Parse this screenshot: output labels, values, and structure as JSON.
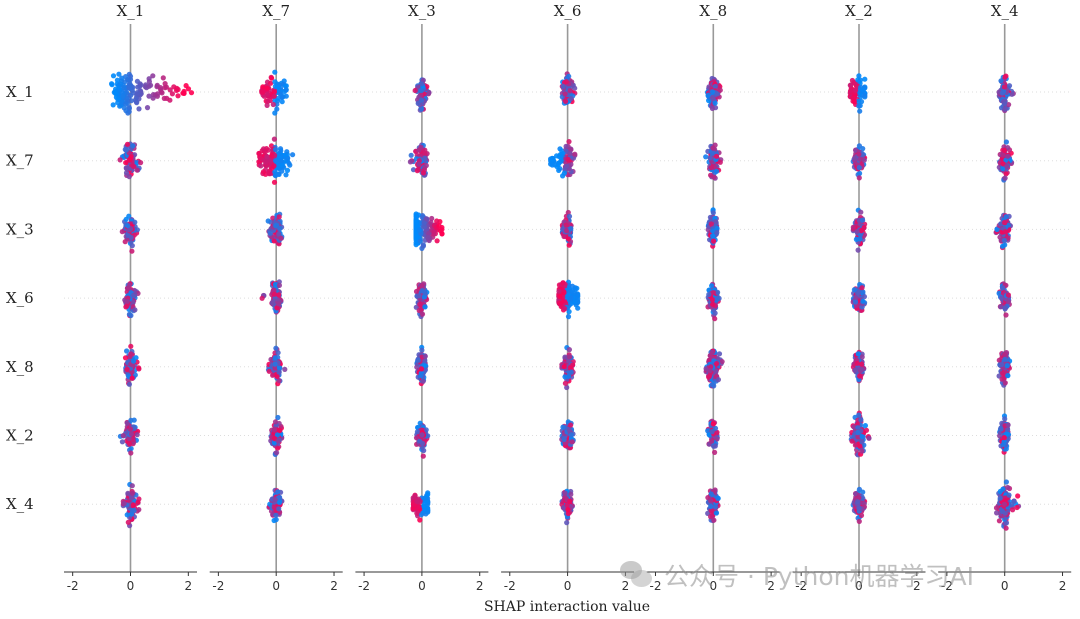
{
  "watermark": {
    "text": "公众号 · Python机器学习AI",
    "logo": "wechat-logo"
  },
  "colors": {
    "low": "#008afb",
    "high": "#ff0052",
    "axis": "#999999",
    "grid": "#dddddd"
  },
  "chart_data": {
    "type": "scatter",
    "subtype": "shap-interaction-beeswarm-matrix",
    "xlabel": "SHAP interaction value",
    "xlim": [
      -2.3,
      2.3
    ],
    "xticks": [
      -2,
      0,
      2
    ],
    "xtick_labels": [
      "-2",
      "0",
      "2"
    ],
    "columns": [
      "X_1",
      "X_7",
      "X_3",
      "X_6",
      "X_8",
      "X_2",
      "X_4"
    ],
    "rows": [
      "X_1",
      "X_7",
      "X_3",
      "X_6",
      "X_8",
      "X_2",
      "X_4"
    ],
    "center_line": 0,
    "grid": "horizontal-dotted",
    "cells": [
      [
        {
          "min": -0.7,
          "max": 2.2,
          "skew": "high-right"
        },
        {
          "min": -0.5,
          "max": 0.35,
          "skew": "high-left"
        },
        {
          "min": -0.25,
          "max": 0.25,
          "skew": "mixed"
        },
        {
          "min": -0.2,
          "max": 0.25,
          "skew": "mixed"
        },
        {
          "min": -0.2,
          "max": 0.25,
          "skew": "mixed"
        },
        {
          "min": -0.3,
          "max": 0.2,
          "skew": "high-left"
        },
        {
          "min": -0.25,
          "max": 0.3,
          "skew": "mixed"
        }
      ],
      [
        {
          "min": -0.5,
          "max": 0.35,
          "skew": "mixed"
        },
        {
          "min": -0.6,
          "max": 0.8,
          "skew": "high-left"
        },
        {
          "min": -0.4,
          "max": 0.2,
          "skew": "mixed"
        },
        {
          "min": -0.6,
          "max": 0.25,
          "skew": "low-left"
        },
        {
          "min": -0.35,
          "max": 0.3,
          "skew": "mixed"
        },
        {
          "min": -0.2,
          "max": 0.2,
          "skew": "mixed"
        },
        {
          "min": -0.2,
          "max": 0.25,
          "skew": "mixed"
        }
      ],
      [
        {
          "min": -0.3,
          "max": 0.25,
          "skew": "mixed"
        },
        {
          "min": -0.35,
          "max": 0.2,
          "skew": "mixed"
        },
        {
          "min": -0.2,
          "max": 0.7,
          "skew": "high-right"
        },
        {
          "min": -0.2,
          "max": 0.2,
          "skew": "mixed"
        },
        {
          "min": -0.2,
          "max": 0.2,
          "skew": "mixed"
        },
        {
          "min": -0.2,
          "max": 0.2,
          "skew": "mixed"
        },
        {
          "min": -0.3,
          "max": 0.25,
          "skew": "mixed"
        }
      ],
      [
        {
          "min": -0.2,
          "max": 0.3,
          "skew": "mixed"
        },
        {
          "min": -0.5,
          "max": 0.2,
          "skew": "mixed"
        },
        {
          "min": -0.2,
          "max": 0.2,
          "skew": "mixed"
        },
        {
          "min": -0.3,
          "max": 0.35,
          "skew": "high-left"
        },
        {
          "min": -0.2,
          "max": 0.2,
          "skew": "mixed"
        },
        {
          "min": -0.2,
          "max": 0.2,
          "skew": "mixed"
        },
        {
          "min": -0.2,
          "max": 0.2,
          "skew": "mixed"
        }
      ],
      [
        {
          "min": -0.25,
          "max": 0.3,
          "skew": "mixed"
        },
        {
          "min": -0.3,
          "max": 0.3,
          "skew": "mixed"
        },
        {
          "min": -0.2,
          "max": 0.2,
          "skew": "mixed"
        },
        {
          "min": -0.2,
          "max": 0.2,
          "skew": "mixed"
        },
        {
          "min": -0.25,
          "max": 0.35,
          "skew": "mixed"
        },
        {
          "min": -0.2,
          "max": 0.2,
          "skew": "mixed"
        },
        {
          "min": -0.2,
          "max": 0.2,
          "skew": "mixed"
        }
      ],
      [
        {
          "min": -0.35,
          "max": 0.25,
          "skew": "mixed"
        },
        {
          "min": -0.2,
          "max": 0.2,
          "skew": "mixed"
        },
        {
          "min": -0.2,
          "max": 0.2,
          "skew": "mixed"
        },
        {
          "min": -0.2,
          "max": 0.2,
          "skew": "mixed"
        },
        {
          "min": -0.2,
          "max": 0.2,
          "skew": "mixed"
        },
        {
          "min": -0.3,
          "max": 0.35,
          "skew": "mixed"
        },
        {
          "min": -0.2,
          "max": 0.2,
          "skew": "mixed"
        }
      ],
      [
        {
          "min": -0.25,
          "max": 0.3,
          "skew": "mixed"
        },
        {
          "min": -0.25,
          "max": 0.25,
          "skew": "mixed"
        },
        {
          "min": -0.3,
          "max": 0.2,
          "skew": "high-left"
        },
        {
          "min": -0.2,
          "max": 0.2,
          "skew": "mixed"
        },
        {
          "min": -0.2,
          "max": 0.2,
          "skew": "mixed"
        },
        {
          "min": -0.2,
          "max": 0.2,
          "skew": "mixed"
        },
        {
          "min": -0.3,
          "max": 0.5,
          "skew": "mixed"
        }
      ]
    ]
  }
}
